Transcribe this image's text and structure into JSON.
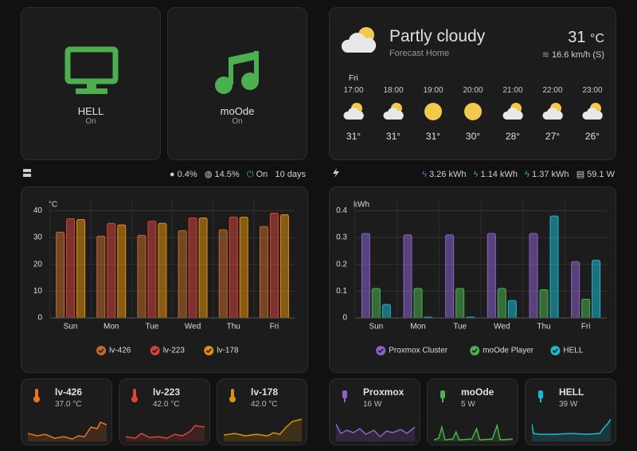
{
  "devices": [
    {
      "name": "HELL",
      "state": "On"
    },
    {
      "name": "moOde",
      "state": "On"
    }
  ],
  "weather": {
    "condition": "Partly cloudy",
    "location": "Forecast Home",
    "temperature": "31",
    "unit": "°C",
    "wind": "16.6 km/h (S)",
    "day": "Fri",
    "forecast": [
      {
        "time": "17:00",
        "temp": "31°"
      },
      {
        "time": "18:00",
        "temp": "31°"
      },
      {
        "time": "19:00",
        "temp": "31°"
      },
      {
        "time": "20:00",
        "temp": "30°"
      },
      {
        "time": "21:00",
        "temp": "28°"
      },
      {
        "time": "22:00",
        "temp": "27°"
      },
      {
        "time": "23:00",
        "temp": "26°"
      }
    ]
  },
  "status": {
    "cpu": "0.4%",
    "memory": "14.5%",
    "state": "On",
    "uptime": "10 days"
  },
  "energy": {
    "proxmox": "3.26 kWh",
    "moode": "1.14 kWh",
    "hell": "1.37 kWh",
    "power": "59.1 W"
  },
  "chart_data": [
    {
      "type": "bar",
      "y_label": "°C",
      "categories": [
        "Sun",
        "Mon",
        "Tue",
        "Wed",
        "Thu",
        "Fri"
      ],
      "series": [
        {
          "name": "lv-426",
          "color": "#c06a2b",
          "values": [
            32,
            30.5,
            30.8,
            32.6,
            32.9,
            34.1
          ]
        },
        {
          "name": "lv-223",
          "color": "#d0453a",
          "values": [
            37,
            35.3,
            36.1,
            37.3,
            37.6,
            39.1
          ]
        },
        {
          "name": "lv-178",
          "color": "#e0900f",
          "values": [
            36.7,
            34.7,
            35.3,
            37.3,
            37.6,
            38.5
          ]
        }
      ],
      "ylim": [
        0,
        44
      ],
      "yticks": [
        0,
        10,
        20,
        30,
        40
      ],
      "grid": true,
      "legend": "bottom"
    },
    {
      "type": "bar",
      "y_label": "kWh",
      "categories": [
        "Sun",
        "Mon",
        "Tue",
        "Wed",
        "Thu",
        "Fri"
      ],
      "series": [
        {
          "name": "Proxmox Cluster",
          "color": "#8a63c9",
          "values": [
            0.315,
            0.31,
            0.31,
            0.315,
            0.315,
            0.21
          ]
        },
        {
          "name": "moOde Player",
          "color": "#4caf50",
          "values": [
            0.11,
            0.11,
            0.11,
            0.11,
            0.105,
            0.07
          ]
        },
        {
          "name": "HELL",
          "color": "#1fb8cc",
          "values": [
            0.05,
            0.003,
            0.003,
            0.065,
            0.38,
            0.215
          ]
        }
      ],
      "ylim": [
        0,
        0.44
      ],
      "yticks": [
        0,
        0.1,
        0.2,
        0.3,
        0.4
      ],
      "grid": true,
      "legend": "bottom"
    }
  ],
  "sensors": [
    {
      "name": "lv-426",
      "value": "37.0 °C"
    },
    {
      "name": "lv-223",
      "value": "42.0 °C"
    },
    {
      "name": "lv-178",
      "value": "42.0 °C"
    },
    {
      "name": "Proxmox",
      "value": "16 W"
    },
    {
      "name": "moOde",
      "value": "5 W"
    },
    {
      "name": "HELL",
      "value": "39 W"
    }
  ]
}
